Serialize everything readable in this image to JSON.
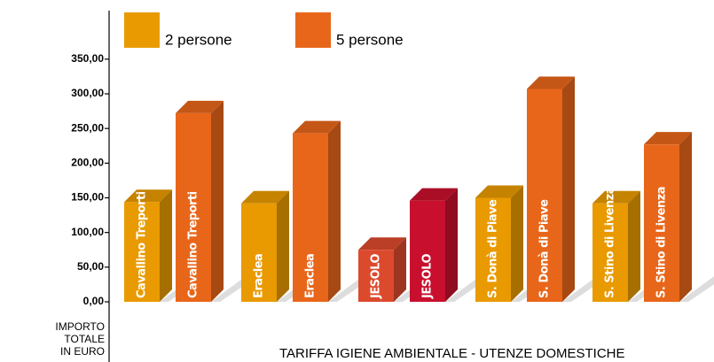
{
  "chart_data": {
    "type": "bar",
    "title": "TARIFFA IGIENE AMBIENTALE - UTENZE DOMESTICHE",
    "y_label": [
      "IMPORTO",
      "TOTALE",
      "IN EURO"
    ],
    "categories": [
      "Cavallino Treporti",
      "Eraclea",
      "JESOLO",
      "S. Donà di Piave",
      "S. Stino di Livenza"
    ],
    "series": [
      {
        "name": "2 persone",
        "color": "#e89a00",
        "colors": [
          "#e89a00",
          "#e89a00",
          "#dc4a2e",
          "#e89a00",
          "#e89a00"
        ],
        "values": [
          144,
          142,
          75,
          150,
          142
        ]
      },
      {
        "name": "5 persone",
        "color": "#e8661a",
        "colors": [
          "#e8661a",
          "#e8661a",
          "#c8102e",
          "#e8661a",
          "#e8661a"
        ],
        "values": [
          272,
          243,
          146,
          307,
          227
        ]
      }
    ],
    "ylim": [
      0,
      420
    ],
    "yticks": [
      {
        "value": 0,
        "label": "0,00"
      },
      {
        "value": 50,
        "label": "50,00"
      },
      {
        "value": 100,
        "label": "100,00"
      },
      {
        "value": 150,
        "label": "150,00"
      },
      {
        "value": 200,
        "label": "200,00"
      },
      {
        "value": 250,
        "label": "250,00"
      },
      {
        "value": 300,
        "label": "300,00"
      },
      {
        "value": 350,
        "label": "350,00"
      }
    ]
  }
}
